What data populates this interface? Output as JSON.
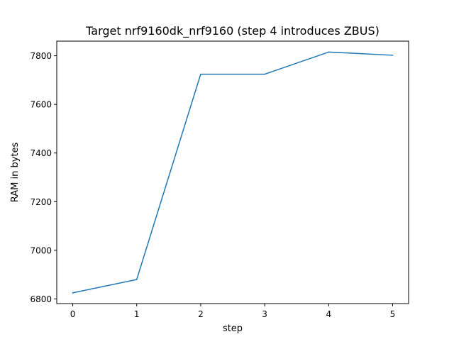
{
  "chart_data": {
    "type": "line",
    "title": "Target nrf9160dk_nrf9160 (step 4 introduces ZBUS)",
    "xlabel": "step",
    "ylabel": "RAM in bytes",
    "xlim": [
      -0.25,
      5.25
    ],
    "ylim": [
      6781,
      7860
    ],
    "x_ticks": [
      0,
      1,
      2,
      3,
      4,
      5
    ],
    "y_ticks": [
      6800,
      7000,
      7200,
      7400,
      7600,
      7800
    ],
    "grid": false,
    "series": [
      {
        "color": "#1f77b4",
        "x": [
          0,
          1,
          2,
          3,
          4,
          5
        ],
        "values": [
          6825,
          6880,
          7724,
          7724,
          7815,
          7802
        ]
      }
    ]
  }
}
